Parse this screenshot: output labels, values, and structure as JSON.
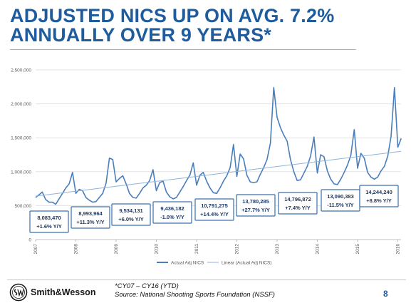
{
  "slide": {
    "title_lines": [
      "ADJUSTED NICS UP ON AVG. 7.2%",
      "ANNUALLY OVER 9 YEARS*"
    ],
    "footnote_lines": [
      "*CY07 – CY16 (YTD)",
      "Source: National Shooting Sports Foundation (NSSF)"
    ],
    "logo_text": "Smith&Wesson",
    "logo_icon": "sw-monogram-icon",
    "page_number": "8",
    "colors": {
      "title": "#1f5c9e",
      "series": "#4a7ebb",
      "box_border": "#3a6fae",
      "box_text": "#1f3864"
    }
  },
  "chart_data": {
    "type": "line",
    "y_tick_labels": [
      "0",
      "500,000",
      "1,000,000",
      "1,500,000",
      "2,000,000",
      "2,500,000"
    ],
    "ylim": [
      0,
      2500000
    ],
    "grid": true,
    "x_tick_labels": [
      "2007",
      "2008",
      "2009",
      "2010",
      "2011",
      "2012",
      "2013",
      "2014",
      "2015",
      "2016"
    ],
    "xlim": [
      2007,
      2016.08
    ],
    "legend_position": "bottom",
    "series": [
      {
        "name": "Actual Adj NICS",
        "x": [
          2007.0,
          2007.083,
          2007.167,
          2007.25,
          2007.333,
          2007.417,
          2007.5,
          2007.583,
          2007.667,
          2007.75,
          2007.833,
          2007.917,
          2008.0,
          2008.083,
          2008.167,
          2008.25,
          2008.333,
          2008.417,
          2008.5,
          2008.583,
          2008.667,
          2008.75,
          2008.833,
          2008.917,
          2009.0,
          2009.083,
          2009.167,
          2009.25,
          2009.333,
          2009.417,
          2009.5,
          2009.583,
          2009.667,
          2009.75,
          2009.833,
          2009.917,
          2010.0,
          2010.083,
          2010.167,
          2010.25,
          2010.333,
          2010.417,
          2010.5,
          2010.583,
          2010.667,
          2010.75,
          2010.833,
          2010.917,
          2011.0,
          2011.083,
          2011.167,
          2011.25,
          2011.333,
          2011.417,
          2011.5,
          2011.583,
          2011.667,
          2011.75,
          2011.833,
          2011.917,
          2012.0,
          2012.083,
          2012.167,
          2012.25,
          2012.333,
          2012.417,
          2012.5,
          2012.583,
          2012.667,
          2012.75,
          2012.833,
          2012.917,
          2013.0,
          2013.083,
          2013.167,
          2013.25,
          2013.333,
          2013.417,
          2013.5,
          2013.583,
          2013.667,
          2013.75,
          2013.833,
          2013.917,
          2014.0,
          2014.083,
          2014.167,
          2014.25,
          2014.333,
          2014.417,
          2014.5,
          2014.583,
          2014.667,
          2014.75,
          2014.833,
          2014.917,
          2015.0,
          2015.083,
          2015.167,
          2015.25,
          2015.333,
          2015.417,
          2015.5,
          2015.583,
          2015.667,
          2015.75,
          2015.833,
          2015.917,
          2016.0,
          2016.083
        ],
        "y": [
          620000,
          660000,
          700000,
          590000,
          550000,
          550000,
          520000,
          600000,
          680000,
          760000,
          820000,
          990000,
          680000,
          740000,
          720000,
          620000,
          580000,
          550000,
          560000,
          620000,
          680000,
          830000,
          1200000,
          1180000,
          850000,
          900000,
          940000,
          820000,
          680000,
          620000,
          610000,
          680000,
          760000,
          800000,
          870000,
          1030000,
          720000,
          840000,
          860000,
          700000,
          630000,
          600000,
          620000,
          700000,
          780000,
          870000,
          950000,
          1130000,
          800000,
          950000,
          990000,
          860000,
          760000,
          690000,
          680000,
          760000,
          860000,
          940000,
          1060000,
          1400000,
          930000,
          1260000,
          1190000,
          950000,
          850000,
          840000,
          850000,
          960000,
          1060000,
          1180000,
          1420000,
          2240000,
          1800000,
          1650000,
          1540000,
          1450000,
          1180000,
          1000000,
          870000,
          880000,
          980000,
          1080000,
          1230000,
          1510000,
          980000,
          1250000,
          1220000,
          1010000,
          890000,
          820000,
          810000,
          890000,
          990000,
          1100000,
          1240000,
          1620000,
          1050000,
          1270000,
          1200000,
          990000,
          920000,
          890000,
          920000,
          1010000,
          1080000,
          1230000,
          1520000,
          2240000,
          1360000,
          1490000
        ]
      },
      {
        "name": "Linear (Actual Adj NICS)",
        "x": [
          2007.0,
          2016.08
        ],
        "y": [
          640000,
          1300000
        ]
      }
    ],
    "annotations": [
      {
        "total": "8,083,470",
        "change": "+1.6% Y/Y"
      },
      {
        "total": "8,993,964",
        "change": "+11.3% Y/Y"
      },
      {
        "total": "9,534,131",
        "change": "+6.0% Y/Y"
      },
      {
        "total": "9,436,182",
        "change": "-1.0% Y/Y"
      },
      {
        "total": "10,791,275",
        "change": "+14.4% Y/Y"
      },
      {
        "total": "13,780,285",
        "change": "+27.7% Y/Y"
      },
      {
        "total": "14,796,872",
        "change": "+7.4% Y/Y"
      },
      {
        "total": "13,090,383",
        "change": "-11.5% Y/Y"
      },
      {
        "total": "14,244,240",
        "change": "+8.8% Y/Y"
      }
    ]
  }
}
